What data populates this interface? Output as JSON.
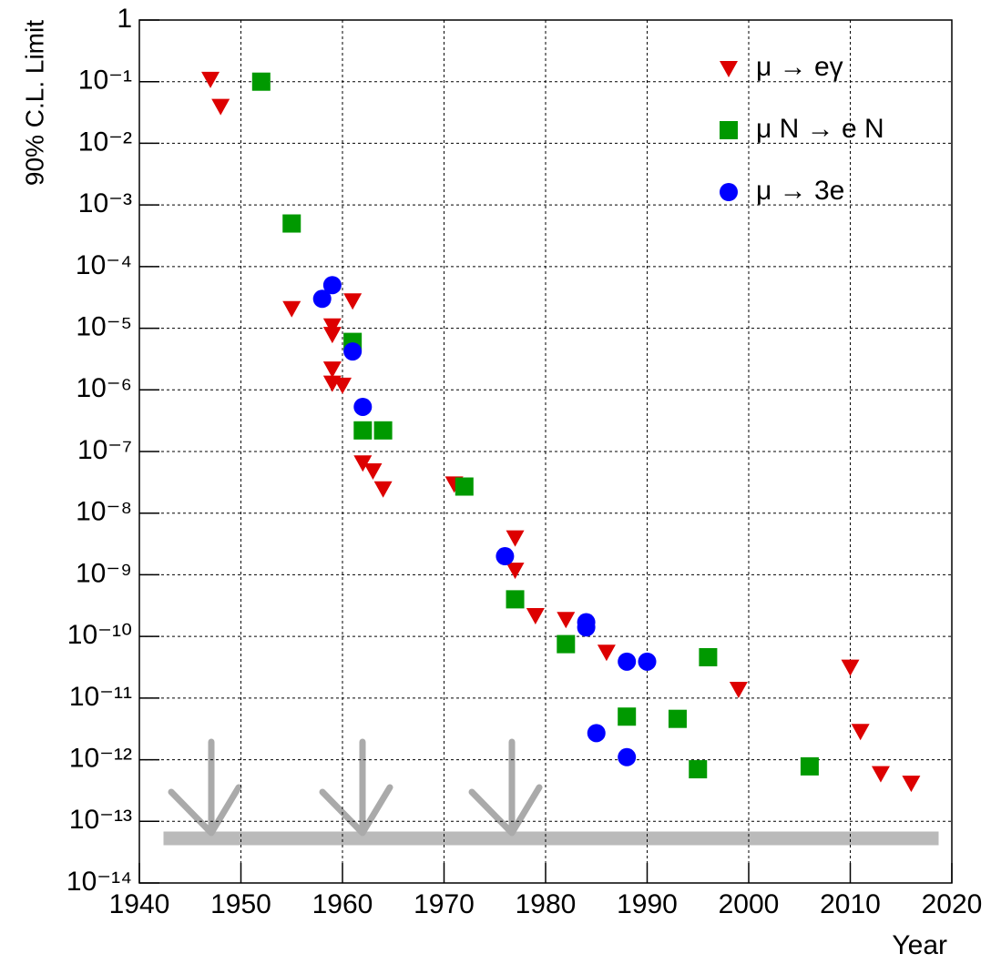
{
  "chart_data": {
    "type": "scatter",
    "xlabel": "Year",
    "ylabel": "90% C.L. Limit",
    "xlim": [
      1940,
      2020
    ],
    "xticks": [
      1940,
      1950,
      1960,
      1970,
      1980,
      1990,
      2000,
      2010,
      2020
    ],
    "ylim": [
      1e-14,
      1
    ],
    "log_y": true,
    "grid": true,
    "legend": "upper right",
    "yticks": [
      {
        "value": 1e-14,
        "label": "10⁻¹⁴"
      },
      {
        "value": 1e-13,
        "label": "10⁻¹³"
      },
      {
        "value": 1e-12,
        "label": "10⁻¹²"
      },
      {
        "value": 1e-11,
        "label": "10⁻¹¹"
      },
      {
        "value": 1e-10,
        "label": "10⁻¹⁰"
      },
      {
        "value": 1e-09,
        "label": "10⁻⁹"
      },
      {
        "value": 1e-08,
        "label": "10⁻⁸"
      },
      {
        "value": 1e-07,
        "label": "10⁻⁷"
      },
      {
        "value": 1e-06,
        "label": "10⁻⁶"
      },
      {
        "value": 1e-05,
        "label": "10⁻⁵"
      },
      {
        "value": 0.0001,
        "label": "10⁻⁴"
      },
      {
        "value": 0.001,
        "label": "10⁻³"
      },
      {
        "value": 0.01,
        "label": "10⁻²"
      },
      {
        "value": 0.1,
        "label": "10⁻¹"
      },
      1
    ],
    "series": [
      {
        "name": "μ → eγ",
        "color": "#dd0000",
        "marker": "triangle-down",
        "x": [
          1947,
          1948,
          1955,
          1959,
          1959,
          1959,
          1959,
          1960,
          1961,
          1962,
          1963,
          1964,
          1971,
          1977,
          1977,
          1979,
          1982,
          1986,
          1999,
          2010,
          2011,
          2013,
          2016
        ],
        "values": [
          0.11,
          0.04,
          2.1e-05,
          1.1e-05,
          8e-06,
          2.2e-06,
          1.3e-06,
          1.2e-06,
          2.8e-05,
          6.6e-08,
          4.9e-08,
          2.5e-08,
          3e-08,
          4e-09,
          1.2e-09,
          2.2e-10,
          1.9e-10,
          5.6e-11,
          1.4e-11,
          3.2e-11,
          2.9e-12,
          6e-13,
          4.2e-13
        ]
      },
      {
        "name": "μ N → e N",
        "color": "#009900",
        "marker": "square",
        "x": [
          1952,
          1955,
          1961,
          1962,
          1964,
          1972,
          1977,
          1982,
          1988,
          1993,
          1995,
          1996,
          2006
        ],
        "values": [
          0.1,
          0.0005,
          6e-06,
          2.2e-07,
          2.2e-07,
          2.7e-08,
          4e-10,
          7.5e-11,
          5e-12,
          4.6e-12,
          7e-13,
          4.6e-11,
          7.8e-13
        ]
      },
      {
        "name": "μ → 3e",
        "color": "#0000ff",
        "marker": "circle",
        "x": [
          1958,
          1959,
          1961,
          1962,
          1976,
          1984,
          1984,
          1985,
          1988,
          1988,
          1990
        ],
        "values": [
          3e-05,
          5e-05,
          4.2e-06,
          5.3e-07,
          2e-09,
          1.7e-10,
          1.4e-10,
          2.7e-12,
          3.9e-11,
          1.1e-12,
          3.9e-11
        ]
      }
    ]
  }
}
